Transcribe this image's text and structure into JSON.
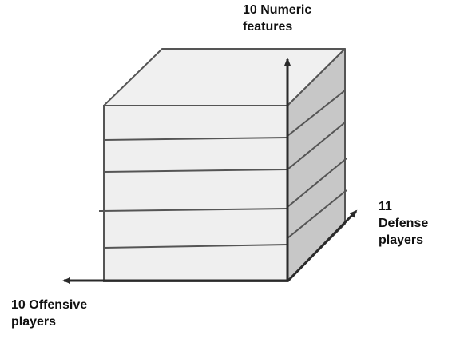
{
  "axes": {
    "vertical": {
      "lines": [
        "10 Numeric",
        "features"
      ]
    },
    "depth": {
      "lines": [
        "11",
        "Defense",
        "players"
      ]
    },
    "horizontal": {
      "lines": [
        "10 Offensive",
        "players"
      ]
    }
  },
  "cube": {
    "front_face_slices": 5,
    "side_face_slices": 6
  },
  "colors": {
    "front_face": "#efefef",
    "top_face": "#f0f0f0",
    "side_face": "#c7c7c7",
    "outline": "#555555",
    "axis": "#2a2a2a",
    "text": "#111111"
  }
}
